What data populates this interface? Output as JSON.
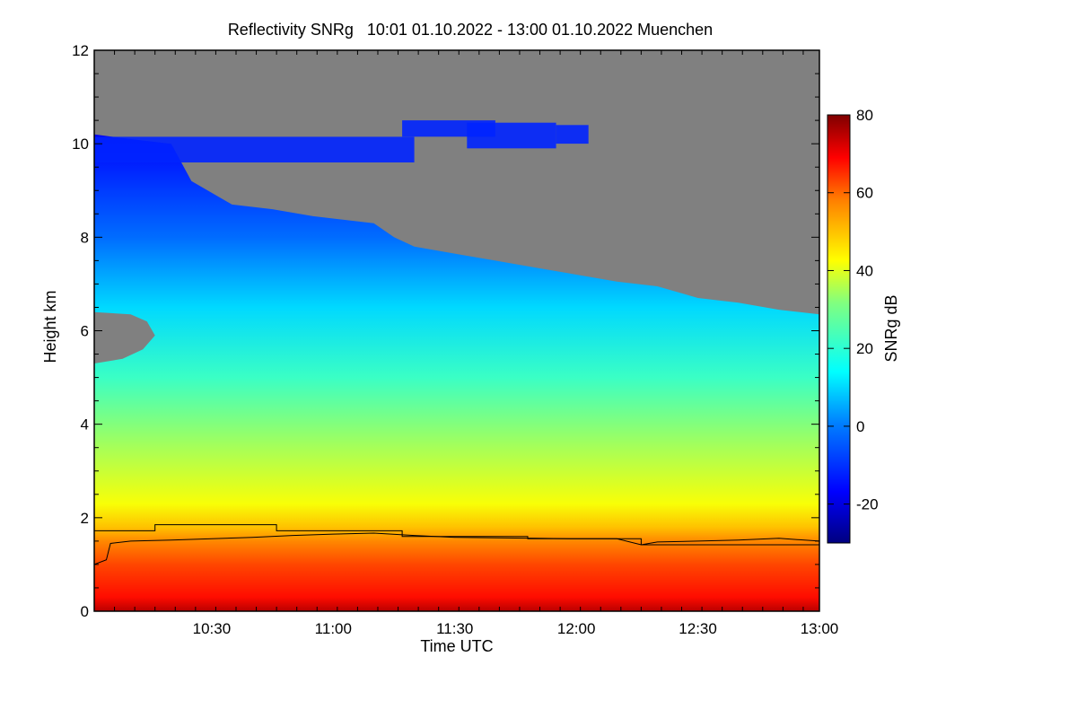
{
  "chart_data": {
    "type": "heatmap",
    "title": "Reflectivity SNRg   10:01 01.10.2022 - 13:00 01.10.2022 Muenchen",
    "xlabel": "Time UTC",
    "ylabel": "Height km",
    "colorbar_label": "SNRg dB",
    "xlim": [
      "10:01",
      "13:00"
    ],
    "ylim": [
      0,
      12
    ],
    "x_ticks": [
      "10:30",
      "11:00",
      "11:30",
      "12:00",
      "12:30",
      "13:00"
    ],
    "y_ticks": [
      0,
      2,
      4,
      6,
      8,
      10,
      12
    ],
    "colorbar_range": [
      -30,
      80
    ],
    "colorbar_ticks": [
      -20,
      0,
      20,
      40,
      60,
      80
    ],
    "no_signal_color": "#808080",
    "snr_profile": [
      {
        "height_km": 0.0,
        "snr_db": 75
      },
      {
        "height_km": 0.3,
        "snr_db": 68
      },
      {
        "height_km": 1.0,
        "snr_db": 63
      },
      {
        "height_km": 1.5,
        "snr_db": 57
      },
      {
        "height_km": 1.8,
        "snr_db": 50
      },
      {
        "height_km": 2.3,
        "snr_db": 42
      },
      {
        "height_km": 3.5,
        "snr_db": 35
      },
      {
        "height_km": 5.0,
        "snr_db": 22
      },
      {
        "height_km": 6.5,
        "snr_db": 10
      },
      {
        "height_km": 8.0,
        "snr_db": -2
      },
      {
        "height_km": 9.5,
        "snr_db": -12
      },
      {
        "height_km": 10.2,
        "snr_db": -18
      }
    ],
    "echo_top": {
      "time": [
        "10:01",
        "10:10",
        "10:15",
        "10:20",
        "10:25",
        "10:35",
        "10:45",
        "10:55",
        "11:05",
        "11:10",
        "11:15",
        "11:20",
        "11:30",
        "11:40",
        "11:50",
        "12:00",
        "12:10",
        "12:20",
        "12:30",
        "12:40",
        "12:50",
        "13:00"
      ],
      "height_km": [
        10.2,
        10.1,
        10.05,
        10.0,
        9.2,
        8.7,
        8.6,
        8.45,
        8.35,
        8.3,
        8.0,
        7.8,
        7.65,
        7.5,
        7.35,
        7.2,
        7.05,
        6.95,
        6.7,
        6.6,
        6.45,
        6.35
      ]
    },
    "gap_region": {
      "time": [
        "10:01",
        "10:10",
        "10:14",
        "10:16",
        "10:13",
        "10:08",
        "10:01"
      ],
      "height_km": [
        6.4,
        6.35,
        6.2,
        5.9,
        5.6,
        5.4,
        5.3
      ]
    },
    "upper_cloud": [
      {
        "t_start": "10:01",
        "t_end": "11:20",
        "bottom_km": 9.6,
        "top_km": 10.15
      },
      {
        "t_start": "11:17",
        "t_end": "11:40",
        "bottom_km": 10.15,
        "top_km": 10.5
      },
      {
        "t_start": "11:33",
        "t_end": "11:55",
        "bottom_km": 9.9,
        "top_km": 10.45
      },
      {
        "t_start": "11:55",
        "t_end": "12:03",
        "bottom_km": 10.0,
        "top_km": 10.4
      }
    ],
    "series": [
      {
        "time": [
          "10:01",
          "10:04",
          "10:05",
          "10:10",
          "10:20",
          "10:30",
          "10:40",
          "10:50",
          "11:00",
          "11:10",
          "11:20",
          "11:30",
          "11:40",
          "11:50",
          "12:00",
          "12:10",
          "12:16",
          "12:20",
          "12:30",
          "12:40",
          "12:50",
          "13:00"
        ],
        "height_km": [
          1.0,
          1.1,
          1.45,
          1.5,
          1.52,
          1.55,
          1.58,
          1.62,
          1.65,
          1.67,
          1.62,
          1.58,
          1.57,
          1.56,
          1.55,
          1.55,
          1.42,
          1.48,
          1.5,
          1.52,
          1.56,
          1.5
        ]
      },
      {
        "time": [
          "10:01",
          "10:16",
          "10:16",
          "10:46",
          "10:46",
          "11:17",
          "11:17",
          "11:48",
          "11:48",
          "12:16",
          "12:16",
          "13:00"
        ],
        "height_km": [
          1.72,
          1.72,
          1.85,
          1.85,
          1.72,
          1.72,
          1.6,
          1.6,
          1.55,
          1.55,
          1.42,
          1.42
        ]
      }
    ]
  }
}
